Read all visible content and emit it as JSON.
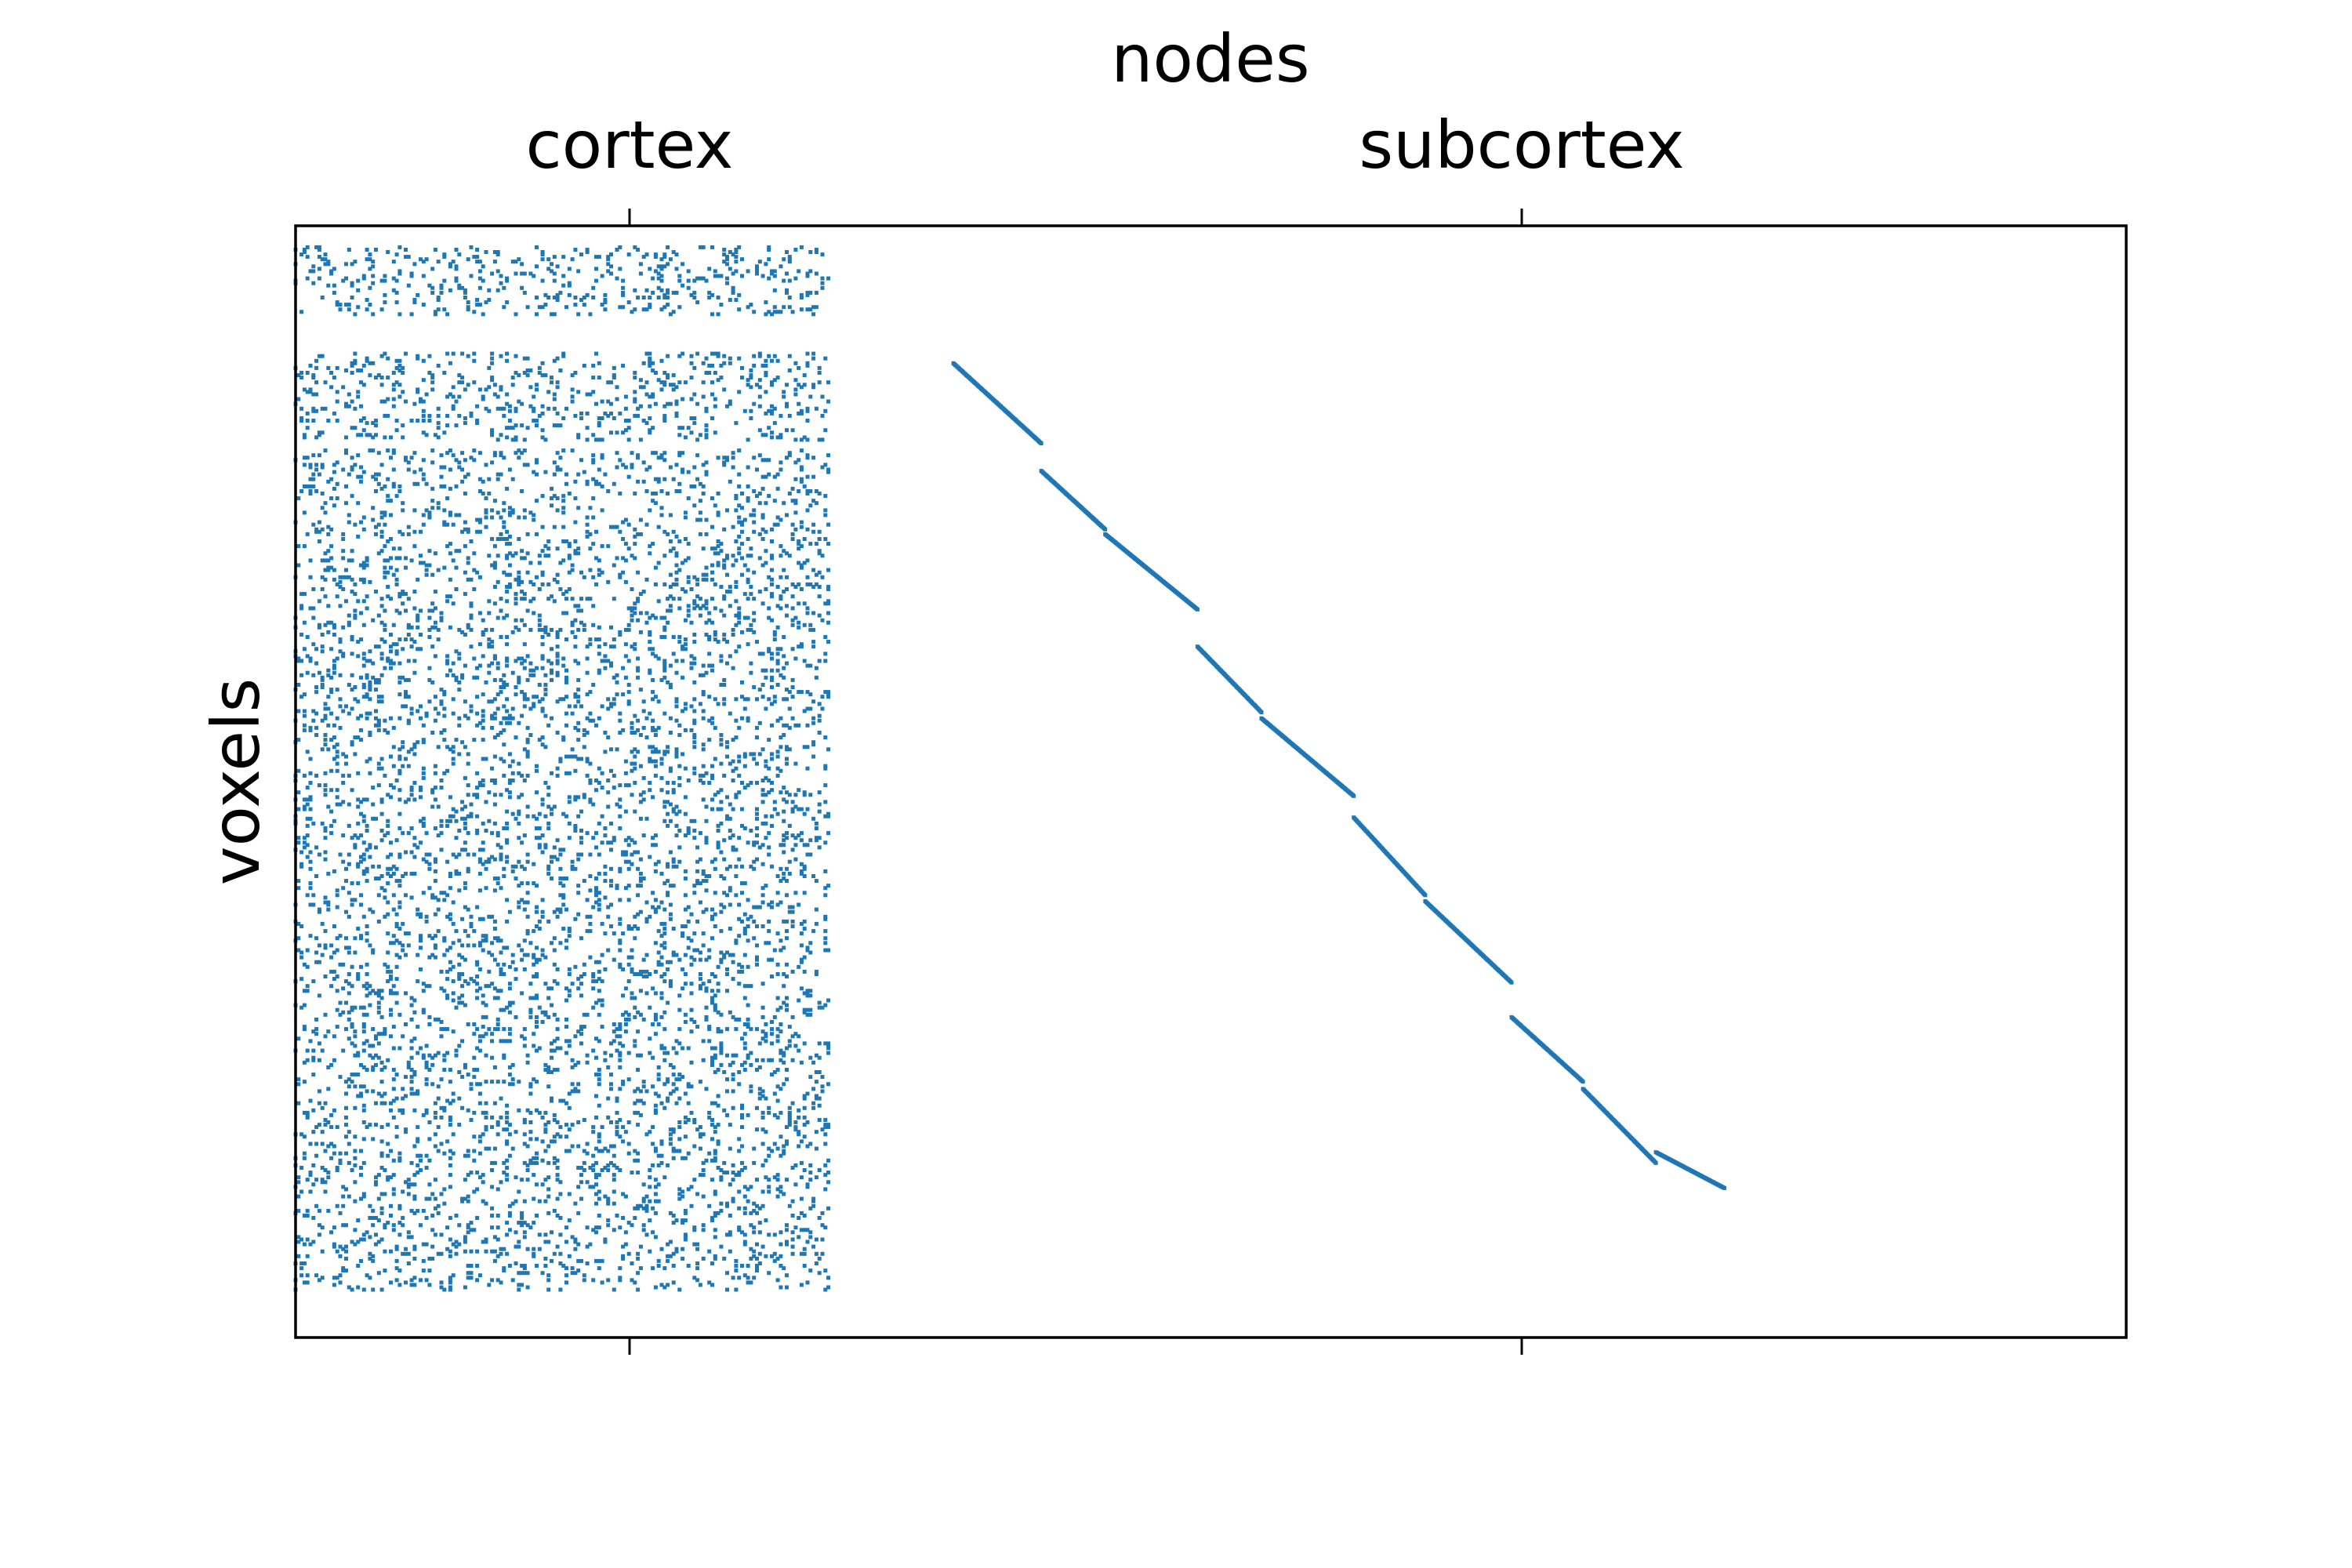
{
  "chart_data": {
    "type": "scatter",
    "title": "",
    "xlabel": "nodes",
    "ylabel": "voxels",
    "x_tick_labels": [
      "cortex",
      "subcortex"
    ],
    "x_ticks_at": "top",
    "y_tick_labels": [],
    "grid": false,
    "legend": "none",
    "marker_color": "#1f77b4",
    "nodes_total": 1230,
    "voxels_total": 930,
    "regions": [
      {
        "name": "cortex",
        "node_range": [
          0,
          360
        ],
        "voxel_range": [
          0,
          930
        ],
        "pattern": "sparse connections to cortical nodes across cortical voxel bands",
        "voxel_bands": [
          [
            18,
            75
          ],
          [
            107,
            180
          ],
          [
            188,
            890
          ]
        ],
        "density_per_voxel": 0.03,
        "seed": 7
      },
      {
        "name": "subcortex",
        "node_range": [
          442,
          960
        ],
        "voxel_range": [
          115,
          805
        ],
        "pattern": "one-to-one diagonal mapping, interrupted segments",
        "segments": [
          [
            442,
            501,
            115,
            182
          ],
          [
            501,
            544,
            205,
            254
          ],
          [
            544,
            606,
            258,
            321
          ],
          [
            606,
            649,
            352,
            407
          ],
          [
            649,
            711,
            412,
            477
          ],
          [
            711,
            759,
            495,
            560
          ],
          [
            759,
            817,
            565,
            633
          ],
          [
            817,
            865,
            662,
            716
          ],
          [
            865,
            914,
            722,
            784
          ],
          [
            914,
            960,
            775,
            805
          ]
        ]
      }
    ]
  }
}
